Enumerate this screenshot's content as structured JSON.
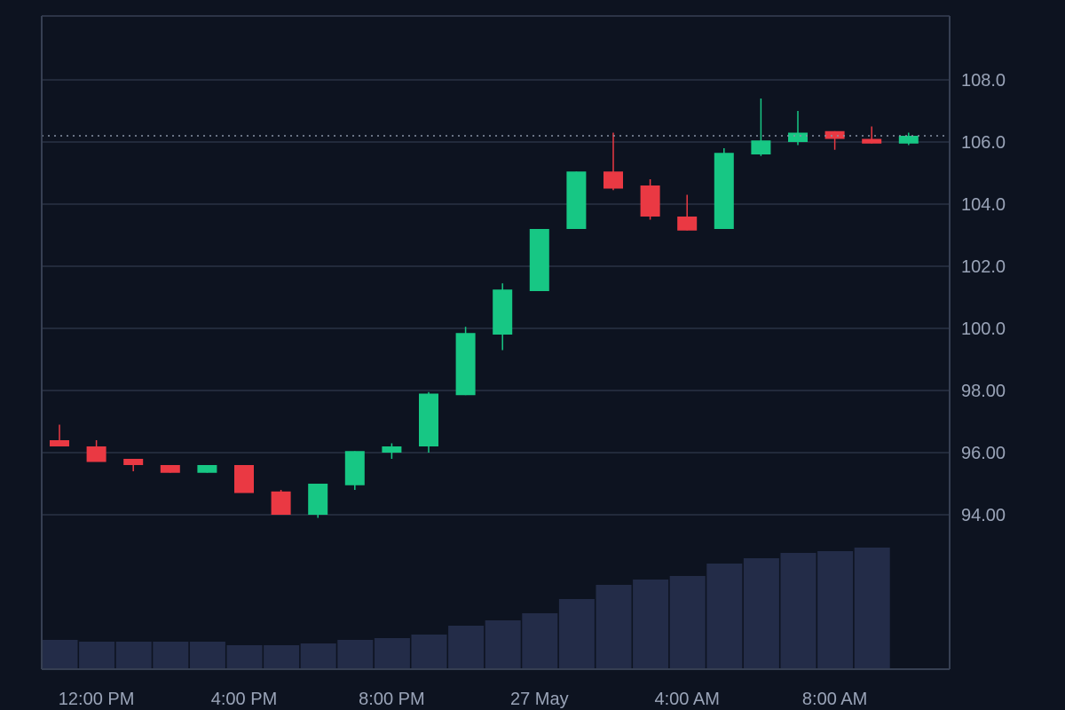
{
  "chart_data": {
    "type": "candlestick",
    "colors": {
      "background": "#0d1320",
      "grid": "#2a3244",
      "frame": "#363f52",
      "up": "#17c784",
      "down": "#ea3943",
      "volume": "#232c48",
      "text": "#9aa4b8",
      "last_price_line": "#8892a6"
    },
    "y_axis": {
      "min": 92.0,
      "max": 110.0,
      "ticks": [
        108.0,
        106.0,
        104.0,
        102.0,
        100.0,
        98.0,
        96.0,
        94.0
      ],
      "tick_labels": [
        "108.0",
        "106.0",
        "104.0",
        "102.0",
        "100.0",
        "98.00",
        "96.00",
        "94.00"
      ],
      "position": "right"
    },
    "x_axis": {
      "tick_labels": [
        "12:00 PM",
        "4:00 PM",
        "8:00 PM",
        "27 May",
        "4:00 AM",
        "8:00 AM"
      ],
      "tick_bar_index": [
        1,
        5,
        9,
        13,
        17,
        21
      ]
    },
    "last_price": 106.2,
    "grid": true,
    "legend": "none",
    "candles": [
      {
        "open": 96.4,
        "close": 96.2,
        "high": 96.9,
        "low": 96.2
      },
      {
        "open": 96.2,
        "close": 95.7,
        "high": 96.4,
        "low": 95.7
      },
      {
        "open": 95.8,
        "close": 95.6,
        "high": 95.8,
        "low": 95.4
      },
      {
        "open": 95.6,
        "close": 95.35,
        "high": 95.6,
        "low": 95.35
      },
      {
        "open": 95.35,
        "close": 95.6,
        "high": 95.6,
        "low": 95.35
      },
      {
        "open": 95.6,
        "close": 94.7,
        "high": 95.6,
        "low": 94.7
      },
      {
        "open": 94.75,
        "close": 94.0,
        "high": 94.8,
        "low": 94.0
      },
      {
        "open": 94.0,
        "close": 95.0,
        "high": 95.0,
        "low": 93.9
      },
      {
        "open": 94.95,
        "close": 96.05,
        "high": 96.05,
        "low": 94.8
      },
      {
        "open": 96.0,
        "close": 96.2,
        "high": 96.3,
        "low": 95.8
      },
      {
        "open": 96.2,
        "close": 97.9,
        "high": 97.95,
        "low": 96.0
      },
      {
        "open": 97.85,
        "close": 99.85,
        "high": 100.05,
        "low": 97.85
      },
      {
        "open": 99.8,
        "close": 101.25,
        "high": 101.45,
        "low": 99.3
      },
      {
        "open": 101.2,
        "close": 103.2,
        "high": 103.2,
        "low": 101.2
      },
      {
        "open": 103.2,
        "close": 105.05,
        "high": 105.05,
        "low": 103.2
      },
      {
        "open": 105.05,
        "close": 104.5,
        "high": 106.3,
        "low": 104.45
      },
      {
        "open": 104.6,
        "close": 103.6,
        "high": 104.8,
        "low": 103.5
      },
      {
        "open": 103.6,
        "close": 103.15,
        "high": 104.3,
        "low": 103.15
      },
      {
        "open": 103.2,
        "close": 105.65,
        "high": 105.8,
        "low": 103.2
      },
      {
        "open": 105.6,
        "close": 106.05,
        "high": 107.4,
        "low": 105.55
      },
      {
        "open": 106.0,
        "close": 106.3,
        "high": 107.0,
        "low": 105.9
      },
      {
        "open": 106.35,
        "close": 106.1,
        "high": 106.35,
        "low": 105.75
      },
      {
        "open": 106.1,
        "close": 105.95,
        "high": 106.5,
        "low": 105.95
      },
      {
        "open": 105.95,
        "close": 106.2,
        "high": 106.3,
        "low": 105.9
      }
    ],
    "volume": [
      {
        "bar_index": 0,
        "value": 33
      },
      {
        "bar_index": 1,
        "value": 31
      },
      {
        "bar_index": 2,
        "value": 31
      },
      {
        "bar_index": 3,
        "value": 31
      },
      {
        "bar_index": 4,
        "value": 31
      },
      {
        "bar_index": 5,
        "value": 27
      },
      {
        "bar_index": 6,
        "value": 27
      },
      {
        "bar_index": 7,
        "value": 29
      },
      {
        "bar_index": 8,
        "value": 33
      },
      {
        "bar_index": 9,
        "value": 35
      },
      {
        "bar_index": 10,
        "value": 39
      },
      {
        "bar_index": 11,
        "value": 49
      },
      {
        "bar_index": 12,
        "value": 55
      },
      {
        "bar_index": 13,
        "value": 63
      },
      {
        "bar_index": 14,
        "value": 79
      },
      {
        "bar_index": 15,
        "value": 95
      },
      {
        "bar_index": 16,
        "value": 101
      },
      {
        "bar_index": 17,
        "value": 105
      },
      {
        "bar_index": 18,
        "value": 119
      },
      {
        "bar_index": 19,
        "value": 125
      },
      {
        "bar_index": 20,
        "value": 131
      },
      {
        "bar_index": 21,
        "value": 133
      },
      {
        "bar_index": 22,
        "value": 137
      }
    ]
  }
}
